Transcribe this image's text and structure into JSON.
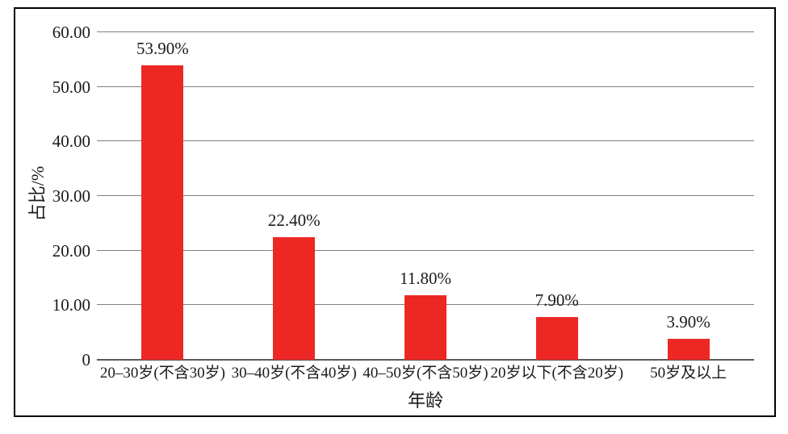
{
  "chart_data": {
    "type": "bar",
    "title": "",
    "categories": [
      "20–30岁(不含30岁)",
      "30–40岁(不含40岁)",
      "40–50岁(不含50岁)",
      "20岁以下(不含20岁)",
      "50岁及以上"
    ],
    "values": [
      53.9,
      22.4,
      11.8,
      7.9,
      3.9
    ],
    "data_labels": [
      "53.90%",
      "22.40%",
      "11.80%",
      "7.90%",
      "3.90%"
    ],
    "xlabel": "年龄",
    "ylabel": "占比/%",
    "ylim": [
      0,
      60
    ],
    "ytick_interval": 10,
    "ytick_labels": [
      "0",
      "10.00",
      "20.00",
      "30.00",
      "40.00",
      "50.00",
      "60.00"
    ],
    "grid": true,
    "legend": "none",
    "colors": {
      "bar": "#ed2824",
      "gridline": "#808080",
      "axis_line": "#595959",
      "text": "#1a1a1a",
      "border": "#000000",
      "background": "#ffffff"
    }
  }
}
